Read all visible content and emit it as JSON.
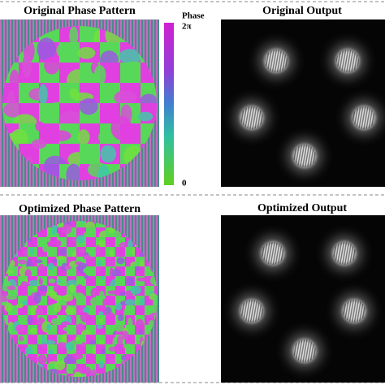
{
  "panels": [
    {
      "title": "Original Phase Pattern"
    },
    {
      "title": "Original Output"
    },
    {
      "title": "Optimized Phase Pattern"
    },
    {
      "title": "Optimized Output"
    }
  ],
  "colorbar": {
    "label": "Phase",
    "max_label": "2π",
    "min_label": "0"
  }
}
